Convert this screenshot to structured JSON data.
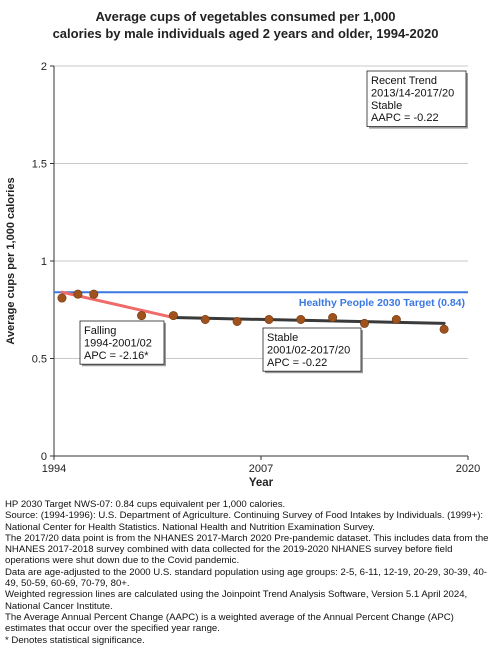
{
  "chart_data": {
    "type": "line",
    "title_line1": "Average cups of vegetables consumed per 1,000",
    "title_line2": "calories by male individuals aged 2 years and older, 1994-2020",
    "xlabel": "Year",
    "ylabel": "Average cups per 1,000 calories",
    "xlim": [
      1994,
      2020
    ],
    "ylim": [
      0,
      2
    ],
    "x_ticks": [
      "1994",
      "2007",
      "2020"
    ],
    "y_ticks": [
      "0",
      "0.5",
      "1",
      "1.5",
      "2"
    ],
    "grid": true,
    "points": [
      {
        "x": 1994.5,
        "y": 0.81
      },
      {
        "x": 1995.5,
        "y": 0.83
      },
      {
        "x": 1996.5,
        "y": 0.83
      },
      {
        "x": 1999.5,
        "y": 0.72
      },
      {
        "x": 2001.5,
        "y": 0.72
      },
      {
        "x": 2003.5,
        "y": 0.7
      },
      {
        "x": 2005.5,
        "y": 0.69
      },
      {
        "x": 2007.5,
        "y": 0.7
      },
      {
        "x": 2009.5,
        "y": 0.7
      },
      {
        "x": 2011.5,
        "y": 0.71
      },
      {
        "x": 2013.5,
        "y": 0.68
      },
      {
        "x": 2015.5,
        "y": 0.7
      },
      {
        "x": 2018.5,
        "y": 0.65
      }
    ],
    "trend_segments": [
      {
        "x": [
          1994.5,
          2001.5
        ],
        "y": [
          0.84,
          0.71
        ],
        "color": "#f06a6a"
      },
      {
        "x": [
          2001.5,
          2018.5
        ],
        "y": [
          0.71,
          0.68
        ],
        "color": "#3a3a3a"
      }
    ],
    "target": {
      "value": 0.84,
      "label": "Healthy People 2030 Target (0.84)",
      "color": "#3a78e0"
    },
    "point_color": "#a0521c",
    "annotations": [
      {
        "lines": [
          "Recent Trend",
          "2013/14-2017/20",
          "Stable",
          "AAPC = -0.22"
        ]
      },
      {
        "lines": [
          "Falling",
          "1994-2001/02",
          "APC = -2.16*"
        ]
      },
      {
        "lines": [
          "Stable",
          "2001/02-2017/20",
          "APC = -0.22"
        ]
      }
    ]
  },
  "footnotes": [
    "HP 2030 Target NWS-07: 0.84 cups equivalent per 1,000 calories.",
    "Source: (1994-1996): U.S. Department of Agriculture. Continuing Survey of Food Intakes by Individuals. (1999+): National Center for Health Statistics. National Health and Nutrition Examination Survey.",
    "The 2017/20 data point is from the NHANES 2017-March 2020 Pre-pandemic dataset. This includes data from the NHANES 2017-2018 survey combined with data collected for the 2019-2020 NHANES survey before field operations were shut down due to the Covid pandemic.",
    "Data are age-adjusted to the 2000 U.S. standard population using age groups: 2-5, 6-11, 12-19, 20-29, 30-39, 40-49, 50-59, 60-69, 70-79, 80+.",
    "Weighted regression lines are calculated using the Joinpoint Trend Analysis Software, Version 5.1 April 2024, National Cancer Institute.",
    "The Average Annual Percent Change (AAPC) is a weighted average of the Annual Percent Change (APC) estimates that occur over the specified year range.",
    "* Denotes statistical significance."
  ]
}
